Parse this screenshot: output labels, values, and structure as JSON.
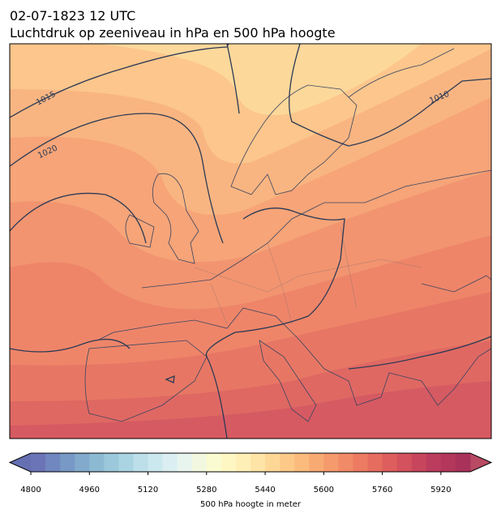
{
  "header": {
    "date": "02-07-1823 12 UTC",
    "title": "Luchtdruk op zeeniveau in hPa en 500 hPa hoogte"
  },
  "map": {
    "contour_labels": [
      "1015",
      "1020",
      "1010"
    ]
  },
  "colorbar": {
    "label": "500 hPa hoogte in meter",
    "lim": [
      4800,
      6000
    ],
    "ticks": [
      4800,
      4960,
      5120,
      5280,
      5440,
      5600,
      5760,
      5920
    ],
    "colors": [
      "#6b74b7",
      "#7087bf",
      "#7899c6",
      "#82aacc",
      "#8dbad3",
      "#9bc8da",
      "#abd4e2",
      "#bcdfe9",
      "#cce8ef",
      "#dbeff2",
      "#e8f5ef",
      "#f2f8e0",
      "#fafbd0",
      "#fef7c4",
      "#feefb7",
      "#fee4a6",
      "#fdd796",
      "#fcc988",
      "#fbbb7c",
      "#f8aa73",
      "#f59a6c",
      "#f18a66",
      "#ec7b62",
      "#e66c5f",
      "#de5e5d",
      "#d4525d",
      "#c8465d",
      "#bb3c5c",
      "#b2375b",
      "#a9325a"
    ],
    "under_color": "#6570b3",
    "over_color": "#b94a63"
  }
}
